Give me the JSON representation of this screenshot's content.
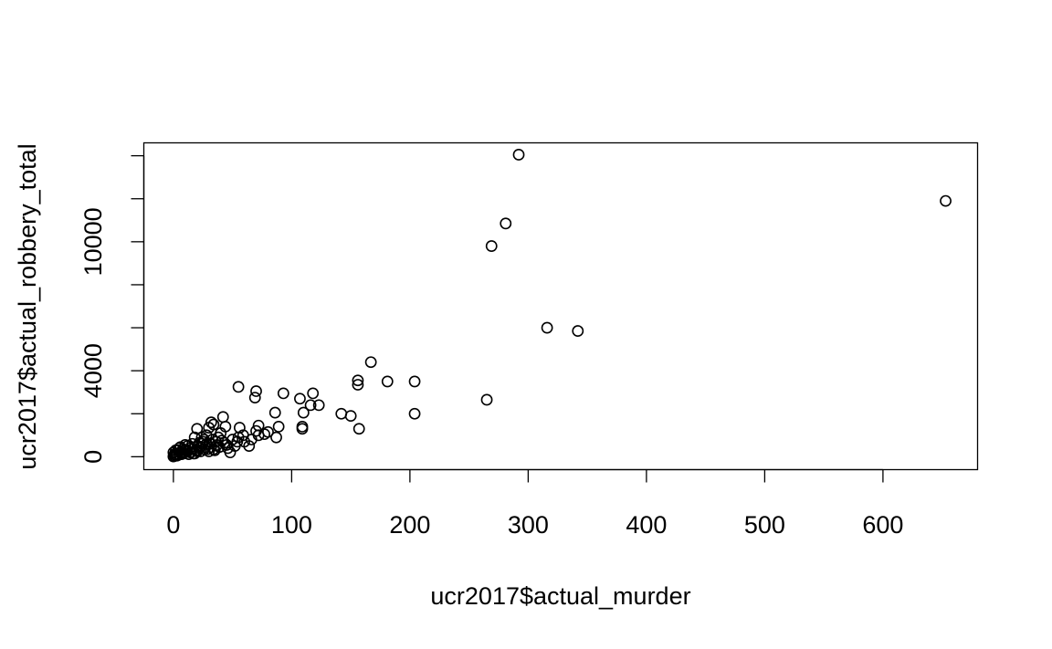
{
  "chart_data": {
    "type": "scatter",
    "title": "",
    "xlabel": "ucr2017$actual_murder",
    "ylabel": "ucr2017$actual_robbery_total",
    "xlim": [
      -25,
      680
    ],
    "ylim": [
      -600,
      14600
    ],
    "x_ticks": [
      0,
      100,
      200,
      300,
      400,
      500,
      600
    ],
    "x_tick_labels": [
      "0",
      "100",
      "200",
      "300",
      "400",
      "500",
      "600"
    ],
    "y_ticks": [
      0,
      2000,
      4000,
      6000,
      8000,
      10000,
      12000,
      14000
    ],
    "y_tick_labels": [
      "0",
      "",
      "4000",
      "",
      "",
      "10000",
      "",
      ""
    ],
    "grid": false,
    "legend": "none",
    "marker": "open-circle",
    "colors": {
      "point_stroke": "#000000",
      "axis": "#000000",
      "background": "#ffffff"
    },
    "points": [
      [
        653,
        11900
      ],
      [
        292,
        14050
      ],
      [
        281,
        10850
      ],
      [
        269,
        9800
      ],
      [
        316,
        6000
      ],
      [
        342,
        5850
      ],
      [
        167,
        4400
      ],
      [
        55,
        3250
      ],
      [
        70,
        3050
      ],
      [
        69,
        2750
      ],
      [
        93,
        2950
      ],
      [
        107,
        2700
      ],
      [
        118,
        2950
      ],
      [
        116,
        2400
      ],
      [
        123,
        2400
      ],
      [
        110,
        2050
      ],
      [
        86,
        2050
      ],
      [
        109,
        1400
      ],
      [
        109,
        1300
      ],
      [
        142,
        2000
      ],
      [
        150,
        1900
      ],
      [
        157,
        1300
      ],
      [
        156,
        3550
      ],
      [
        156,
        3350
      ],
      [
        181,
        3500
      ],
      [
        204,
        3500
      ],
      [
        204,
        2000
      ],
      [
        265,
        2650
      ],
      [
        89,
        1400
      ],
      [
        87,
        900
      ],
      [
        80,
        1150
      ],
      [
        72,
        1450
      ],
      [
        70,
        1200
      ],
      [
        72,
        1000
      ],
      [
        77,
        1050
      ],
      [
        64,
        500
      ],
      [
        59,
        1000
      ],
      [
        56,
        1350
      ],
      [
        54,
        700
      ],
      [
        52,
        500
      ],
      [
        48,
        200
      ],
      [
        46,
        400
      ],
      [
        42,
        1850
      ],
      [
        44,
        1400
      ],
      [
        40,
        1100
      ],
      [
        38,
        900
      ],
      [
        36,
        700
      ],
      [
        34,
        1500
      ],
      [
        32,
        1600
      ],
      [
        30,
        1350
      ],
      [
        28,
        1000
      ],
      [
        26,
        800
      ],
      [
        24,
        600
      ],
      [
        22,
        400
      ],
      [
        20,
        1300
      ],
      [
        18,
        900
      ],
      [
        16,
        600
      ],
      [
        14,
        400
      ],
      [
        12,
        250
      ],
      [
        10,
        550
      ],
      [
        8,
        350
      ],
      [
        6,
        200
      ],
      [
        5,
        100
      ],
      [
        4,
        300
      ],
      [
        3,
        150
      ],
      [
        2,
        80
      ],
      [
        1,
        40
      ],
      [
        0,
        10
      ],
      [
        0,
        200
      ],
      [
        1,
        120
      ],
      [
        2,
        300
      ],
      [
        3,
        50
      ],
      [
        5,
        400
      ],
      [
        7,
        120
      ],
      [
        9,
        180
      ],
      [
        11,
        320
      ],
      [
        13,
        120
      ],
      [
        15,
        220
      ],
      [
        17,
        150
      ],
      [
        19,
        300
      ],
      [
        21,
        500
      ],
      [
        23,
        250
      ],
      [
        25,
        700
      ],
      [
        27,
        450
      ],
      [
        29,
        350
      ],
      [
        31,
        600
      ],
      [
        33,
        800
      ],
      [
        35,
        300
      ],
      [
        37,
        550
      ],
      [
        39,
        450
      ],
      [
        41,
        750
      ],
      [
        43,
        650
      ],
      [
        45,
        550
      ],
      [
        50,
        800
      ],
      [
        55,
        900
      ],
      [
        60,
        700
      ],
      [
        66,
        800
      ],
      [
        6,
        450
      ],
      [
        8,
        150
      ],
      [
        10,
        300
      ],
      [
        12,
        500
      ],
      [
        14,
        200
      ],
      [
        16,
        350
      ],
      [
        18,
        150
      ],
      [
        20,
        250
      ],
      [
        22,
        650
      ],
      [
        24,
        900
      ],
      [
        26,
        350
      ],
      [
        28,
        600
      ],
      [
        30,
        250
      ],
      [
        32,
        450
      ],
      [
        34,
        350
      ]
    ]
  }
}
